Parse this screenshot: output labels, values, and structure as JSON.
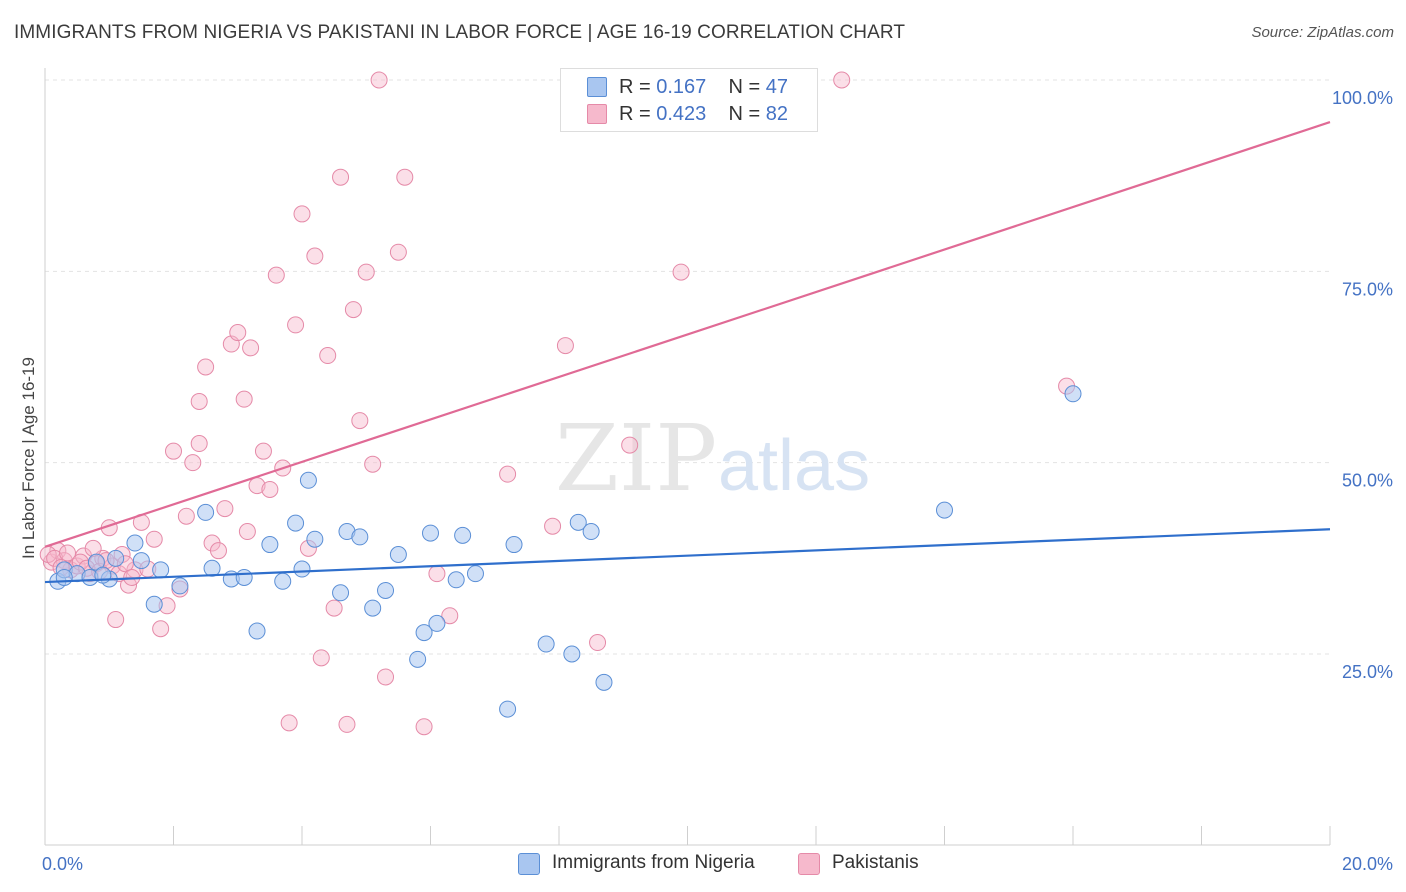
{
  "header": {
    "title": "IMMIGRANTS FROM NIGERIA VS PAKISTANI IN LABOR FORCE | AGE 16-19 CORRELATION CHART",
    "source": "Source: ZipAtlas.com"
  },
  "watermark": {
    "zip": "ZIP",
    "atlas": "atlas"
  },
  "legend": {
    "rows": [
      {
        "r_label": "R = ",
        "r_value": "0.167",
        "n_label": "N = ",
        "n_value": "47",
        "color": "#a9c6f0"
      },
      {
        "r_label": "R = ",
        "r_value": "0.423",
        "n_label": "N = ",
        "n_value": "82",
        "color": "#f6b9cc"
      }
    ]
  },
  "bottom_legend": {
    "items": [
      {
        "label": "Immigrants from Nigeria",
        "color": "#a9c6f0"
      },
      {
        "label": "Pakistanis",
        "color": "#f6b9cc"
      }
    ]
  },
  "chart_data": {
    "type": "scatter",
    "title": "IMMIGRANTS FROM NIGERIA VS PAKISTANI IN LABOR FORCE | AGE 16-19 CORRELATION CHART",
    "xlabel": "",
    "ylabel": "In Labor Force | Age 16-19",
    "xlim": [
      0,
      20
    ],
    "ylim": [
      0,
      105
    ],
    "x_tick_labels": [
      "0.0%",
      "20.0%"
    ],
    "y_ticks": [
      25,
      50,
      75,
      100
    ],
    "y_tick_labels": [
      "25.0%",
      "50.0%",
      "75.0%",
      "100.0%"
    ],
    "grid": true,
    "legend_position": "top-center",
    "colors": {
      "nigeria_fill": "#a9c6f0",
      "nigeria_stroke": "#5b8fd6",
      "nigeria_line": "#2f6fcc",
      "pakistani_fill": "#f6b9cc",
      "pakistani_stroke": "#e58aa8",
      "pakistani_line": "#e06a95"
    },
    "series": [
      {
        "name": "Immigrants from Nigeria",
        "trend": {
          "x": [
            0,
            20
          ],
          "y": [
            34.4,
            41.3
          ]
        },
        "points": [
          [
            0.2,
            34.5
          ],
          [
            0.3,
            36.0
          ],
          [
            0.5,
            35.5
          ],
          [
            0.7,
            35.0
          ],
          [
            0.8,
            37.0
          ],
          [
            1.1,
            37.5
          ],
          [
            1.0,
            34.8
          ],
          [
            1.8,
            36.0
          ],
          [
            1.4,
            39.5
          ],
          [
            1.7,
            31.5
          ],
          [
            2.5,
            43.5
          ],
          [
            2.6,
            36.2
          ],
          [
            2.9,
            34.8
          ],
          [
            3.1,
            35.0
          ],
          [
            3.5,
            39.3
          ],
          [
            3.7,
            34.5
          ],
          [
            3.3,
            28.0
          ],
          [
            3.9,
            42.1
          ],
          [
            4.0,
            36.1
          ],
          [
            4.2,
            40.0
          ],
          [
            4.1,
            47.7
          ],
          [
            4.6,
            33.0
          ],
          [
            4.7,
            41.0
          ],
          [
            4.9,
            40.3
          ],
          [
            5.1,
            31.0
          ],
          [
            5.3,
            33.3
          ],
          [
            5.5,
            38.0
          ],
          [
            5.8,
            24.3
          ],
          [
            5.9,
            27.8
          ],
          [
            6.0,
            40.8
          ],
          [
            6.1,
            29.0
          ],
          [
            6.4,
            34.7
          ],
          [
            6.5,
            40.5
          ],
          [
            6.7,
            35.5
          ],
          [
            7.2,
            17.8
          ],
          [
            7.3,
            39.3
          ],
          [
            7.8,
            26.3
          ],
          [
            8.2,
            25.0
          ],
          [
            8.3,
            42.2
          ],
          [
            8.5,
            41.0
          ],
          [
            8.7,
            21.3
          ],
          [
            14.0,
            43.8
          ],
          [
            16.0,
            59.0
          ],
          [
            0.3,
            35.0
          ],
          [
            2.1,
            33.9
          ],
          [
            0.9,
            35.3
          ],
          [
            1.5,
            37.2
          ]
        ]
      },
      {
        "name": "Pakistanis",
        "trend": {
          "x": [
            0,
            20
          ],
          "y": [
            39.0,
            94.5
          ]
        },
        "points": [
          [
            0.1,
            37.0
          ],
          [
            0.2,
            38.5
          ],
          [
            0.3,
            37.2
          ],
          [
            0.4,
            36.0
          ],
          [
            0.5,
            36.5
          ],
          [
            0.6,
            37.8
          ],
          [
            0.7,
            35.5
          ],
          [
            0.8,
            36.8
          ],
          [
            0.9,
            37.5
          ],
          [
            1.0,
            41.5
          ],
          [
            1.05,
            36.5
          ],
          [
            1.1,
            29.5
          ],
          [
            1.2,
            38.0
          ],
          [
            1.3,
            34.0
          ],
          [
            1.4,
            36.0
          ],
          [
            1.5,
            42.2
          ],
          [
            1.6,
            36.1
          ],
          [
            1.7,
            40.0
          ],
          [
            1.8,
            28.3
          ],
          [
            1.9,
            31.3
          ],
          [
            2.0,
            51.5
          ],
          [
            2.1,
            33.5
          ],
          [
            2.2,
            43.0
          ],
          [
            2.3,
            50.0
          ],
          [
            2.4,
            52.5
          ],
          [
            2.4,
            58.0
          ],
          [
            2.5,
            62.5
          ],
          [
            2.6,
            39.5
          ],
          [
            2.7,
            38.5
          ],
          [
            2.8,
            44.0
          ],
          [
            2.9,
            65.5
          ],
          [
            3.0,
            67.0
          ],
          [
            3.1,
            58.3
          ],
          [
            3.15,
            41.0
          ],
          [
            3.2,
            65.0
          ],
          [
            3.3,
            47.0
          ],
          [
            3.4,
            51.5
          ],
          [
            3.5,
            46.5
          ],
          [
            3.6,
            74.5
          ],
          [
            3.7,
            49.3
          ],
          [
            3.8,
            16.0
          ],
          [
            3.9,
            68.0
          ],
          [
            4.0,
            82.5
          ],
          [
            4.1,
            38.8
          ],
          [
            4.2,
            77.0
          ],
          [
            4.3,
            24.5
          ],
          [
            4.4,
            64.0
          ],
          [
            4.5,
            31.0
          ],
          [
            4.6,
            87.3
          ],
          [
            4.7,
            15.8
          ],
          [
            4.8,
            70.0
          ],
          [
            4.9,
            55.5
          ],
          [
            5.0,
            74.9
          ],
          [
            5.1,
            49.8
          ],
          [
            5.2,
            100.0
          ],
          [
            5.3,
            22.0
          ],
          [
            5.5,
            77.5
          ],
          [
            5.6,
            87.3
          ],
          [
            5.9,
            15.5
          ],
          [
            6.1,
            35.5
          ],
          [
            6.3,
            30.0
          ],
          [
            7.2,
            48.5
          ],
          [
            7.9,
            41.7
          ],
          [
            8.1,
            65.3
          ],
          [
            8.6,
            26.5
          ],
          [
            9.1,
            52.3
          ],
          [
            9.4,
            100.0
          ],
          [
            9.9,
            74.9
          ],
          [
            12.4,
            100.0
          ],
          [
            15.9,
            60.0
          ],
          [
            0.05,
            38.0
          ],
          [
            0.15,
            37.5
          ],
          [
            0.25,
            36.3
          ],
          [
            0.35,
            38.2
          ],
          [
            0.55,
            37.0
          ],
          [
            0.65,
            36.2
          ],
          [
            0.75,
            38.8
          ],
          [
            0.85,
            35.8
          ],
          [
            0.95,
            37.2
          ],
          [
            1.15,
            35.5
          ],
          [
            1.25,
            36.8
          ],
          [
            1.35,
            35.0
          ]
        ]
      }
    ]
  }
}
